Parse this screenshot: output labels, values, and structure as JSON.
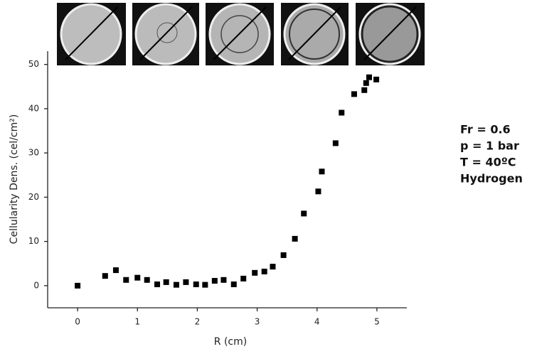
{
  "chart_data": {
    "type": "scatter",
    "x_label": "R (cm)",
    "y_label": "Cellularity Dens. (cel/cm²)",
    "x": [
      0,
      0.46,
      0.64,
      0.81,
      1.0,
      1.16,
      1.33,
      1.48,
      1.65,
      1.81,
      1.98,
      2.13,
      2.29,
      2.44,
      2.61,
      2.77,
      2.96,
      3.12,
      3.26,
      3.44,
      3.63,
      3.78,
      4.02,
      4.08,
      4.31,
      4.41,
      4.62,
      4.79,
      4.82,
      4.87,
      4.99
    ],
    "values": [
      0,
      2.2,
      3.5,
      1.3,
      1.8,
      1.3,
      0.3,
      0.8,
      0.2,
      0.8,
      0.3,
      0.2,
      1.1,
      1.3,
      0.3,
      1.6,
      2.9,
      3.2,
      4.3,
      6.9,
      10.6,
      16.3,
      21.3,
      25.8,
      32.2,
      39.1,
      43.3,
      44.2,
      45.8,
      47.1,
      46.6
    ],
    "color": "#000000",
    "xlim": [
      -0.5,
      5.5
    ],
    "xticks": [
      0,
      1,
      2,
      3,
      4,
      5
    ],
    "ylim": [
      -5,
      53
    ],
    "yticks": [
      0,
      10,
      20,
      30,
      40,
      50
    ],
    "annotations": [
      "Fr = 0.6",
      "p = 1 bar",
      "T = 40ºC",
      "Hydrogen"
    ]
  }
}
